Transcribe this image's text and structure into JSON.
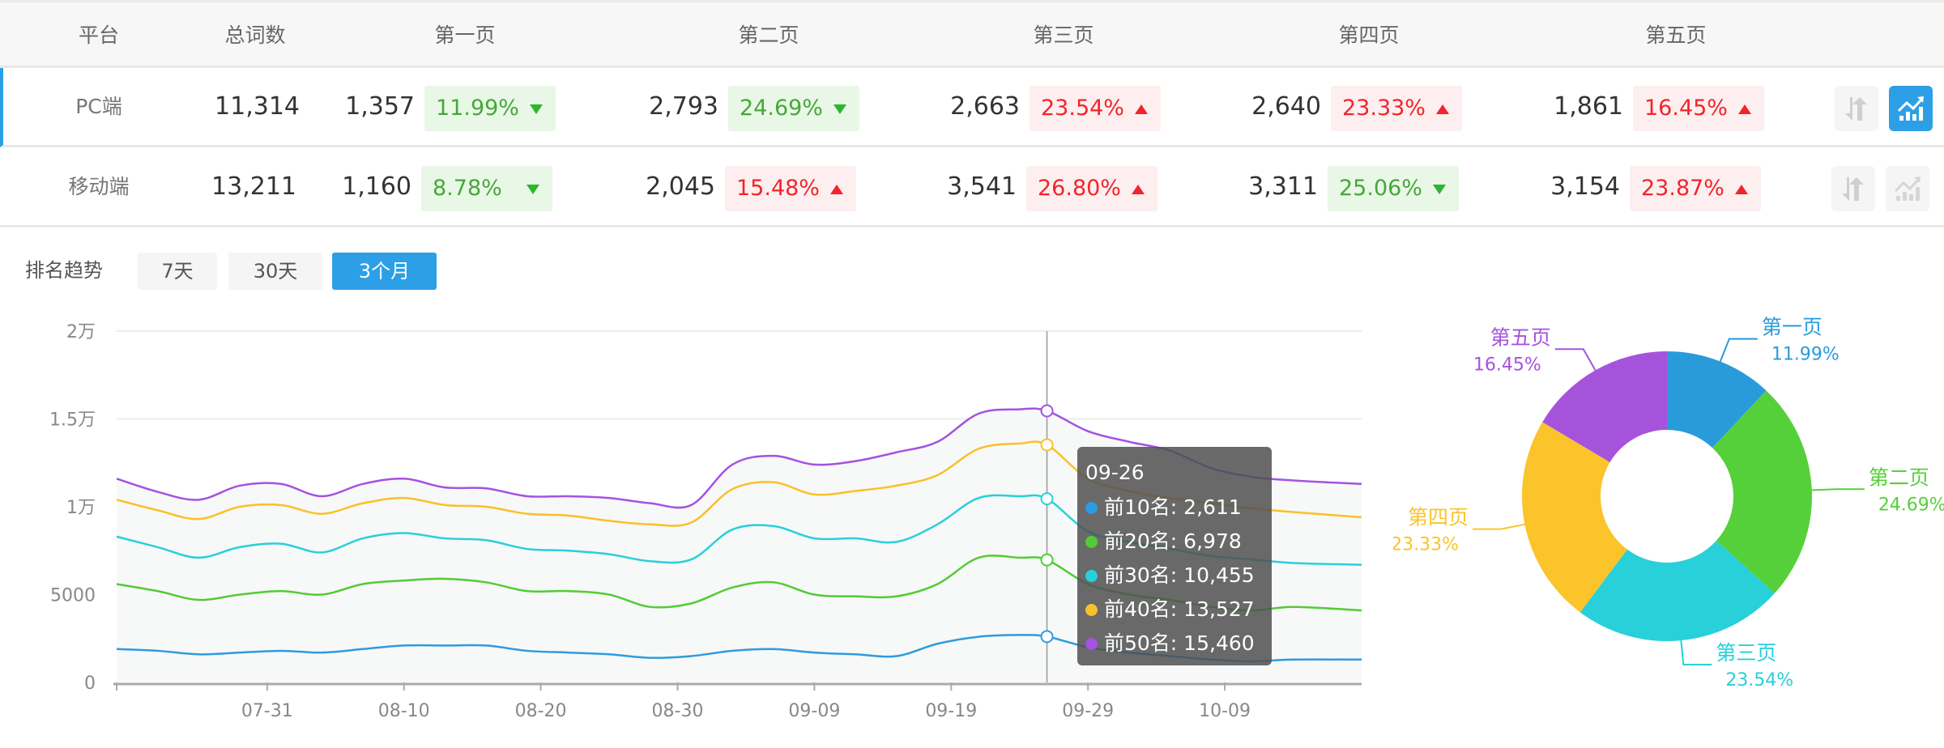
{
  "table": {
    "headers": [
      "平台",
      "总词数",
      "第一页",
      "第二页",
      "第三页",
      "第四页",
      "第五页"
    ],
    "rows": [
      {
        "platform": "PC端",
        "total": "11,314",
        "active": true,
        "pages": [
          {
            "count": "1,357",
            "pct": "11.99%",
            "dir": "down"
          },
          {
            "count": "2,793",
            "pct": "24.69%",
            "dir": "down"
          },
          {
            "count": "2,663",
            "pct": "23.54%",
            "dir": "up"
          },
          {
            "count": "2,640",
            "pct": "23.33%",
            "dir": "up"
          },
          {
            "count": "1,861",
            "pct": "16.45%",
            "dir": "up"
          }
        ],
        "icons": [
          "sort-icon",
          "trend-chart-icon"
        ]
      },
      {
        "platform": "移动端",
        "total": "13,211",
        "active": false,
        "pages": [
          {
            "count": "1,160",
            "pct": "8.78%",
            "dir": "down"
          },
          {
            "count": "2,045",
            "pct": "15.48%",
            "dir": "up"
          },
          {
            "count": "3,541",
            "pct": "26.80%",
            "dir": "up"
          },
          {
            "count": "3,311",
            "pct": "25.06%",
            "dir": "down"
          },
          {
            "count": "3,154",
            "pct": "23.87%",
            "dir": "up"
          }
        ],
        "icons": [
          "sort-icon",
          "trend-chart-icon"
        ]
      }
    ]
  },
  "trend": {
    "title": "排名趋势",
    "ranges": [
      "7天",
      "30天",
      "3个月"
    ],
    "selected_range": "3个月"
  },
  "colors": {
    "accent": "#2d9fe6",
    "up": "#f2242b",
    "down": "#46a83a"
  },
  "chart_data": [
    {
      "type": "line",
      "x": [
        "07-20",
        "07-23",
        "07-26",
        "07-29",
        "08-01",
        "08-04",
        "08-07",
        "08-10",
        "08-13",
        "08-16",
        "08-19",
        "08-22",
        "08-25",
        "08-28",
        "08-31",
        "09-03",
        "09-06",
        "09-09",
        "09-12",
        "09-15",
        "09-18",
        "09-21",
        "09-24",
        "09-26",
        "09-29",
        "10-02",
        "10-05",
        "10-08",
        "10-11",
        "10-14",
        "10-19"
      ],
      "x_ticks": [
        "07-31",
        "08-10",
        "08-20",
        "08-30",
        "09-09",
        "09-19",
        "09-29",
        "10-09"
      ],
      "y_ticks": [
        {
          "value": 0,
          "label": "0"
        },
        {
          "value": 5000,
          "label": "5000"
        },
        {
          "value": 10000,
          "label": "1万"
        },
        {
          "value": 15000,
          "label": "1.5万"
        },
        {
          "value": 20000,
          "label": "2万"
        }
      ],
      "ylim": [
        0,
        20000
      ],
      "grid": true,
      "series": [
        {
          "name": "前10名",
          "color": "#2d9be0",
          "values": [
            1900,
            1800,
            1600,
            1700,
            1800,
            1700,
            1900,
            2100,
            2100,
            2100,
            1800,
            1700,
            1600,
            1400,
            1500,
            1800,
            1900,
            1700,
            1600,
            1500,
            2200,
            2600,
            2700,
            2611,
            2000,
            1700,
            1500,
            1300,
            1200,
            1300,
            1300
          ]
        },
        {
          "name": "前20名",
          "color": "#52cc34",
          "values": [
            5600,
            5200,
            4700,
            5000,
            5200,
            5000,
            5600,
            5800,
            5900,
            5700,
            5200,
            5200,
            5000,
            4300,
            4500,
            5400,
            5700,
            5000,
            4900,
            4900,
            5600,
            7100,
            7100,
            6978,
            5600,
            5000,
            4700,
            4300,
            4100,
            4300,
            4100
          ]
        },
        {
          "name": "前30名",
          "color": "#27d0db",
          "values": [
            8300,
            7700,
            7100,
            7700,
            7900,
            7400,
            8200,
            8500,
            8200,
            8100,
            7600,
            7500,
            7300,
            6900,
            7000,
            8700,
            8900,
            8200,
            8200,
            8000,
            9000,
            10500,
            10600,
            10455,
            8600,
            8000,
            7600,
            7200,
            7000,
            6800,
            6700
          ]
        },
        {
          "name": "前40名",
          "color": "#fac02a",
          "values": [
            10400,
            9800,
            9300,
            10000,
            10100,
            9600,
            10200,
            10500,
            10100,
            10000,
            9600,
            9500,
            9200,
            9000,
            9100,
            11000,
            11400,
            10700,
            10900,
            11200,
            11800,
            13300,
            13600,
            13527,
            11600,
            10900,
            10500,
            10200,
            9900,
            9700,
            9400
          ]
        },
        {
          "name": "前50名",
          "color": "#a552e0",
          "values": [
            11600,
            10850,
            10400,
            11200,
            11300,
            10600,
            11300,
            11600,
            11100,
            11050,
            10600,
            10600,
            10500,
            10200,
            10100,
            12400,
            12900,
            12400,
            12600,
            13100,
            13700,
            15300,
            15550,
            15460,
            14300,
            13700,
            13200,
            12200,
            11700,
            11500,
            11300
          ]
        }
      ],
      "tooltip": {
        "date": "09-26",
        "items": [
          {
            "label": "前10名: 2,611",
            "color": "#2d9be0"
          },
          {
            "label": "前20名: 6,978",
            "color": "#52cc34"
          },
          {
            "label": "前30名: 10,455",
            "color": "#27d0db"
          },
          {
            "label": "前40名: 13,527",
            "color": "#fac02a"
          },
          {
            "label": "前50名: 15,460",
            "color": "#a552e0"
          }
        ]
      }
    },
    {
      "type": "pie",
      "donut": true,
      "slices": [
        {
          "label": "第一页",
          "pct_label": "11.99%",
          "value": 11.99,
          "color": "#2a9bda"
        },
        {
          "label": "第二页",
          "pct_label": "24.69%",
          "value": 24.69,
          "color": "#56d03a"
        },
        {
          "label": "第三页",
          "pct_label": "23.54%",
          "value": 23.54,
          "color": "#28d0d9"
        },
        {
          "label": "第四页",
          "pct_label": "23.33%",
          "value": 23.33,
          "color": "#fac42a"
        },
        {
          "label": "第五页",
          "pct_label": "16.45%",
          "value": 16.45,
          "color": "#a653dc"
        }
      ]
    }
  ]
}
